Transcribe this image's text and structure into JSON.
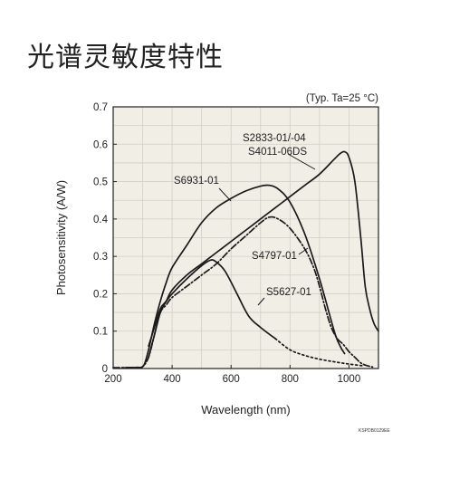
{
  "page": {
    "title": "光谱灵敏度特性"
  },
  "colors": {
    "plot_background": "#f1eee6",
    "grid": "#d2cfc7",
    "axis": "#222222",
    "curve": "#1a1a1a"
  },
  "chart_data": {
    "type": "line",
    "title": "",
    "condition": "(Typ. Ta=25 °C)",
    "xlabel": "Wavelength (nm)",
    "ylabel": "Photosensitivity (A/W)",
    "xlim": [
      200,
      1100
    ],
    "ylim": [
      0,
      0.7
    ],
    "x_ticks": [
      200,
      400,
      600,
      800,
      1000
    ],
    "y_ticks": [
      0,
      0.1,
      0.2,
      0.3,
      0.4,
      0.5,
      0.6,
      0.7
    ],
    "x_tick_labels": [
      "200",
      "400",
      "600",
      "800",
      "1000"
    ],
    "y_tick_labels": [
      "0",
      "0.1",
      "0.2",
      "0.3",
      "0.4",
      "0.5",
      "0.6",
      "0.7"
    ],
    "grid": true,
    "reference_code": "KSPDB0129EE",
    "series": [
      {
        "name": "S2833-01/-04\nS4011-06DS",
        "style": "solid",
        "points": [
          [
            200,
            0.002
          ],
          [
            280,
            0.003
          ],
          [
            300,
            0.005
          ],
          [
            320,
            0.03
          ],
          [
            340,
            0.09
          ],
          [
            360,
            0.15
          ],
          [
            380,
            0.18
          ],
          [
            400,
            0.21
          ],
          [
            450,
            0.25
          ],
          [
            500,
            0.28
          ],
          [
            550,
            0.31
          ],
          [
            600,
            0.34
          ],
          [
            650,
            0.37
          ],
          [
            700,
            0.4
          ],
          [
            750,
            0.43
          ],
          [
            800,
            0.46
          ],
          [
            850,
            0.49
          ],
          [
            900,
            0.52
          ],
          [
            950,
            0.56
          ],
          [
            970,
            0.575
          ],
          [
            985,
            0.58
          ],
          [
            1000,
            0.565
          ],
          [
            1020,
            0.5
          ],
          [
            1040,
            0.35
          ],
          [
            1055,
            0.22
          ],
          [
            1070,
            0.16
          ],
          [
            1085,
            0.12
          ],
          [
            1100,
            0.1
          ]
        ]
      },
      {
        "name": "S6931-01",
        "style": "solid",
        "points": [
          [
            290,
            0.002
          ],
          [
            305,
            0.01
          ],
          [
            320,
            0.05
          ],
          [
            340,
            0.12
          ],
          [
            360,
            0.18
          ],
          [
            380,
            0.23
          ],
          [
            400,
            0.27
          ],
          [
            450,
            0.33
          ],
          [
            500,
            0.39
          ],
          [
            550,
            0.43
          ],
          [
            600,
            0.455
          ],
          [
            650,
            0.475
          ],
          [
            700,
            0.488
          ],
          [
            730,
            0.49
          ],
          [
            760,
            0.48
          ],
          [
            800,
            0.445
          ],
          [
            850,
            0.36
          ],
          [
            900,
            0.24
          ],
          [
            950,
            0.1
          ],
          [
            970,
            0.06
          ],
          [
            985,
            0.04
          ]
        ]
      },
      {
        "name": "S4797-01",
        "style": "dash-dot",
        "points": [
          [
            200,
            0.002
          ],
          [
            280,
            0.003
          ],
          [
            300,
            0.005
          ],
          [
            320,
            0.03
          ],
          [
            340,
            0.09
          ],
          [
            360,
            0.15
          ],
          [
            380,
            0.17
          ],
          [
            400,
            0.19
          ],
          [
            450,
            0.22
          ],
          [
            500,
            0.25
          ],
          [
            550,
            0.28
          ],
          [
            600,
            0.32
          ],
          [
            650,
            0.355
          ],
          [
            700,
            0.39
          ],
          [
            730,
            0.405
          ],
          [
            760,
            0.4
          ],
          [
            800,
            0.375
          ],
          [
            850,
            0.32
          ],
          [
            880,
            0.27
          ],
          [
            900,
            0.22
          ],
          [
            920,
            0.16
          ],
          [
            940,
            0.11
          ],
          [
            960,
            0.08
          ],
          [
            980,
            0.065
          ],
          [
            1000,
            0.045
          ],
          [
            1020,
            0.03
          ],
          [
            1040,
            0.015
          ],
          [
            1060,
            0.008
          ],
          [
            1080,
            0.004
          ]
        ]
      },
      {
        "name": "S5627-01",
        "style": "solid-dotted-tail",
        "points": [
          [
            320,
            0.06
          ],
          [
            340,
            0.11
          ],
          [
            360,
            0.16
          ],
          [
            380,
            0.18
          ],
          [
            400,
            0.2
          ],
          [
            450,
            0.24
          ],
          [
            500,
            0.275
          ],
          [
            530,
            0.29
          ],
          [
            550,
            0.285
          ],
          [
            580,
            0.26
          ],
          [
            620,
            0.2
          ],
          [
            660,
            0.14
          ],
          [
            700,
            0.11
          ],
          [
            750,
            0.08
          ],
          [
            800,
            0.05
          ],
          [
            850,
            0.035
          ],
          [
            900,
            0.025
          ],
          [
            950,
            0.018
          ],
          [
            1000,
            0.012
          ],
          [
            1050,
            0.007
          ]
        ]
      }
    ],
    "labels": [
      {
        "lines": [
          "S2833-01/-04",
          "S4011-06DS"
        ]
      },
      {
        "lines": [
          "S6931-01"
        ]
      },
      {
        "lines": [
          "S4797-01"
        ]
      },
      {
        "lines": [
          "S5627-01"
        ]
      }
    ]
  }
}
